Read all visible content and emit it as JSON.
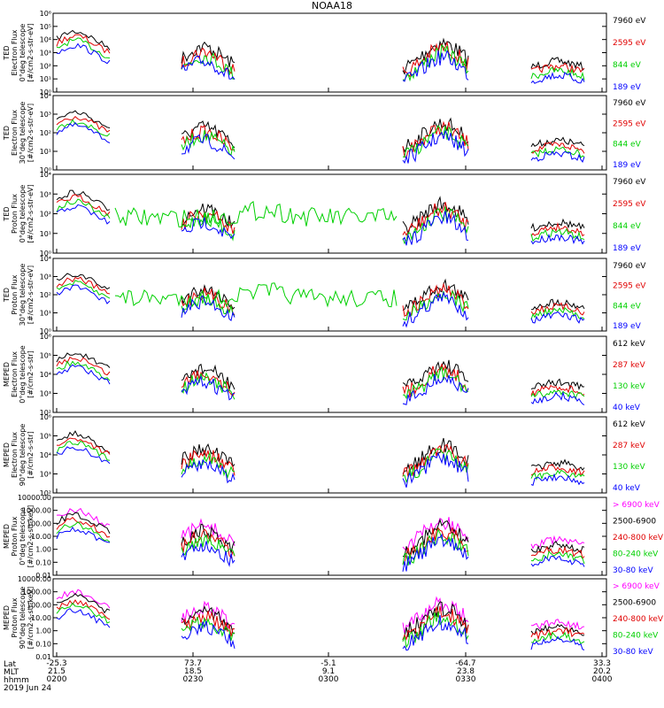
{
  "title": "NOAA18",
  "date_label": "2019 Jun 24",
  "time_axis": {
    "row_labels": [
      "Lat",
      "MLT",
      "hhmm"
    ],
    "ticks": [
      {
        "lat": "-25.3",
        "mlt": "21.5",
        "hhmm": "0200"
      },
      {
        "lat": "73.7",
        "mlt": "18.5",
        "hhmm": "0230"
      },
      {
        "lat": "-5.1",
        "mlt": "9.1",
        "hhmm": "0300"
      },
      {
        "lat": "-64.7",
        "mlt": "23.8",
        "hhmm": "0330"
      },
      {
        "lat": "33.3",
        "mlt": "20.2",
        "hhmm": "0400"
      }
    ]
  },
  "colors": {
    "black": "#000000",
    "red": "#e00000",
    "green": "#00d000",
    "blue": "#0000ff",
    "magenta": "#ff00ff"
  },
  "chart_data": [
    {
      "type": "line",
      "ylabel": [
        "TED",
        "Electron Flux",
        "0°deg telescope",
        "[#/cm2-s-str-eV]"
      ],
      "ylim": [
        1,
        1000000
      ],
      "log": true,
      "tick_labels": [
        "10⁰",
        "10¹",
        "10²",
        "10³",
        "10⁴",
        "10⁵",
        "10⁶"
      ],
      "series": [
        {
          "name": "7960 eV",
          "color": "#000000"
        },
        {
          "name": "2595 eV",
          "color": "#e00000"
        },
        {
          "name": "844 eV",
          "color": "#00d000"
        },
        {
          "name": "189 eV",
          "color": "#0000ff"
        }
      ]
    },
    {
      "type": "line",
      "ylabel": [
        "TED",
        "Electron Flux",
        "30°deg telescope",
        "[#/cm2-s-str-eV]"
      ],
      "ylim": [
        1,
        10000
      ],
      "log": true,
      "tick_labels": [
        "10⁰",
        "10¹",
        "10²",
        "10³",
        "10⁴"
      ],
      "series": [
        {
          "name": "7960 eV",
          "color": "#000000"
        },
        {
          "name": "2595 eV",
          "color": "#e00000"
        },
        {
          "name": "844 eV",
          "color": "#00d000"
        },
        {
          "name": "189 eV",
          "color": "#0000ff"
        }
      ]
    },
    {
      "type": "line",
      "ylabel": [
        "TED",
        "Proton Flux",
        "0°deg telescope",
        "[#/cm2-s-str-eV]"
      ],
      "ylim": [
        1,
        10000
      ],
      "log": true,
      "tick_labels": [
        "10⁰",
        "10¹",
        "10²",
        "10³",
        "10⁴"
      ],
      "series": [
        {
          "name": "7960 eV",
          "color": "#000000"
        },
        {
          "name": "2595 eV",
          "color": "#e00000"
        },
        {
          "name": "844 eV",
          "color": "#00d000"
        },
        {
          "name": "189 eV",
          "color": "#0000ff"
        }
      ]
    },
    {
      "type": "line",
      "ylabel": [
        "TED",
        "Proton Flux",
        "30°deg telescope",
        "[#/cm2-s-str-eV]"
      ],
      "ylim": [
        1,
        10000
      ],
      "log": true,
      "tick_labels": [
        "10⁰",
        "10¹",
        "10²",
        "10³",
        "10⁴"
      ],
      "series": [
        {
          "name": "7960 eV",
          "color": "#000000"
        },
        {
          "name": "2595 eV",
          "color": "#e00000"
        },
        {
          "name": "844 eV",
          "color": "#00d000"
        },
        {
          "name": "189 eV",
          "color": "#0000ff"
        }
      ]
    },
    {
      "type": "line",
      "ylabel": [
        "MEPED",
        "Electron Flux",
        "0°deg telescope",
        "[#/cm2-s-str]"
      ],
      "ylim": [
        100,
        1000000
      ],
      "log": true,
      "tick_labels": [
        "10²",
        "10³",
        "10⁴",
        "10⁵",
        "10⁶"
      ],
      "series": [
        {
          "name": "612 keV",
          "color": "#000000"
        },
        {
          "name": "287 keV",
          "color": "#e00000"
        },
        {
          "name": "130 keV",
          "color": "#00d000"
        },
        {
          "name": "40 keV",
          "color": "#0000ff"
        }
      ]
    },
    {
      "type": "line",
      "ylabel": [
        "MEPED",
        "Electron Flux",
        "90°deg telescope",
        "[#/cm2-s-str]"
      ],
      "ylim": [
        100,
        1000000
      ],
      "log": true,
      "tick_labels": [
        "10²",
        "10³",
        "10⁴",
        "10⁵",
        "10⁶"
      ],
      "series": [
        {
          "name": "612 keV",
          "color": "#000000"
        },
        {
          "name": "287 keV",
          "color": "#e00000"
        },
        {
          "name": "130 keV",
          "color": "#00d000"
        },
        {
          "name": "40 keV",
          "color": "#0000ff"
        }
      ]
    },
    {
      "type": "line",
      "ylabel": [
        "MEPED",
        "Proton Flux",
        "0°deg telescope",
        "[#/cm2-s-str-keV]"
      ],
      "ylim": [
        0.01,
        10000
      ],
      "log": true,
      "tick_labels": [
        "0.01",
        "0.10",
        "1.00",
        "10.00",
        "100.00",
        "1000.00",
        "10000.00"
      ],
      "series": [
        {
          "name": "> 6900 keV",
          "color": "#ff00ff"
        },
        {
          "name": "2500-6900",
          "color": "#000000"
        },
        {
          "name": "240-800 keV",
          "color": "#e00000"
        },
        {
          "name": "80-240 keV",
          "color": "#00d000"
        },
        {
          "name": "30-80 keV",
          "color": "#0000ff"
        }
      ]
    },
    {
      "type": "line",
      "ylabel": [
        "MEPED",
        "Proton Flux",
        "90°deg telescope",
        "[#/cm2-s-str-keV]"
      ],
      "ylim": [
        0.01,
        10000
      ],
      "log": true,
      "tick_labels": [
        "0.01",
        "0.10",
        "1.00",
        "10.00",
        "100.00",
        "1000.00",
        "10000.00"
      ],
      "series": [
        {
          "name": "> 6900 keV",
          "color": "#ff00ff"
        },
        {
          "name": "2500-6900",
          "color": "#000000"
        },
        {
          "name": "240-800 keV",
          "color": "#e00000"
        },
        {
          "name": "80-240 keV",
          "color": "#00d000"
        },
        {
          "name": "30-80 keV",
          "color": "#0000ff"
        }
      ]
    }
  ]
}
